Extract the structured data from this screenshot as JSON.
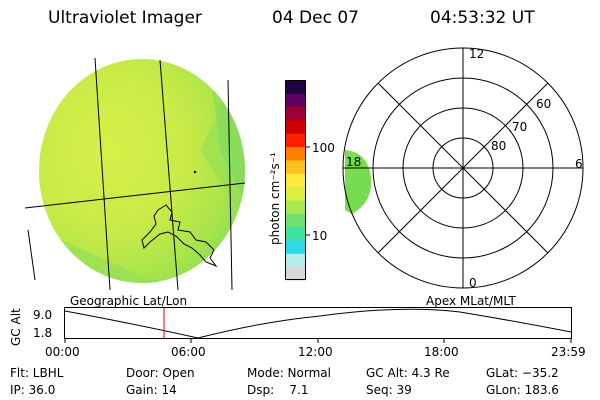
{
  "header": {
    "instrument": "Ultraviolet Imager",
    "date": "04 Dec 07",
    "time": "04:53:32 UT"
  },
  "colorbar": {
    "unit_label": "photon cm⁻²s⁻¹",
    "ticks": [
      "100",
      "10"
    ],
    "colors": [
      "#d8d8d8",
      "#b8eaf0",
      "#30d8e8",
      "#40e0a0",
      "#70e070",
      "#a8e850",
      "#d8f040",
      "#ffe840",
      "#ffc020",
      "#ff8000",
      "#ff2000",
      "#d00000",
      "#a00030",
      "#600060",
      "#200040"
    ]
  },
  "polar_plot": {
    "mlt_labels": {
      "top": "12",
      "bottom": "0",
      "left": "18",
      "right": "6"
    },
    "lat_labels": [
      "60",
      "70",
      "80"
    ]
  },
  "timeline": {
    "left_label": "Geographic Lat/Lon",
    "right_label": "Apex MLat/MLT",
    "axis_label": "GC Alt",
    "y_ticks": [
      "9.0",
      "1.8"
    ],
    "x_ticks": [
      "00:00",
      "06:00",
      "12:00",
      "18:00",
      "23:59"
    ],
    "marker_color": "#dd0000"
  },
  "info": {
    "flt": "Flt: LBHL",
    "ip": "IP: 36.0",
    "door": "Door: Open",
    "gain": "Gain: 14",
    "mode": "Mode: Normal",
    "dsp": "Dsp:    7.1",
    "gcalt": "GC Alt: 4.3 Re",
    "seq": "Seq: 39",
    "glat": "GLat: −35.2",
    "glon": "GLon: 183.6"
  }
}
